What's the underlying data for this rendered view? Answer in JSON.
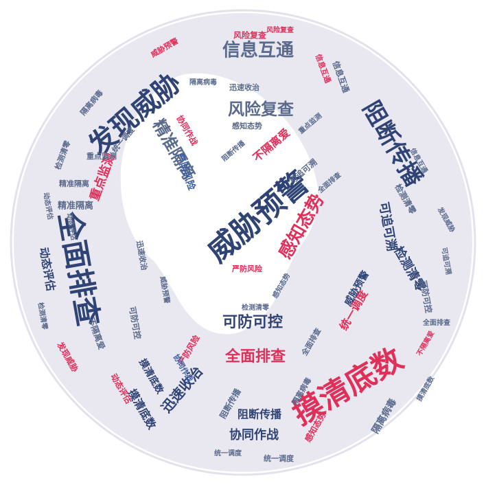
{
  "palette": {
    "navy": "#2f4475",
    "blue": "#3b5ea0",
    "slate": "#5a6a8c",
    "red": "#e0305a",
    "light": "#e9e8f1",
    "ring": "#e2e2ec",
    "face": "#ffffff"
  },
  "words": [
    {
      "text": "摸清底数",
      "color": "red"
    },
    {
      "text": "威胁预警",
      "color": "navy"
    },
    {
      "text": "全面排查",
      "color": "navy"
    },
    {
      "text": "发现威胁",
      "color": "navy"
    },
    {
      "text": "阻断传播",
      "color": "navy"
    },
    {
      "text": "信息互通",
      "color": "slate"
    },
    {
      "text": "风险复查",
      "color": "slate"
    },
    {
      "text": "精准隔离",
      "color": "slate"
    },
    {
      "text": "感知态势",
      "color": "red"
    },
    {
      "text": "全面排查",
      "color": "red"
    },
    {
      "text": "可防可控",
      "color": "navy"
    },
    {
      "text": "迅速收治",
      "color": "navy"
    },
    {
      "text": "协同作战",
      "color": "navy"
    },
    {
      "text": "阻断传播",
      "color": "navy"
    },
    {
      "text": "检测清零",
      "color": "navy"
    },
    {
      "text": "可追可溯",
      "color": "navy"
    },
    {
      "text": "重点监测",
      "color": "red"
    },
    {
      "text": "不隔离爱",
      "color": "red"
    },
    {
      "text": "严防风险",
      "color": "blue"
    },
    {
      "text": "动态评估",
      "color": "navy"
    },
    {
      "text": "摸清底数",
      "color": "navy"
    },
    {
      "text": "统一调度",
      "color": "red"
    },
    {
      "text": "隔离病毒",
      "color": "slate"
    },
    {
      "text": "威胁预警",
      "color": "navy"
    },
    {
      "text": "精准隔离",
      "color": "slate"
    },
    {
      "text": "检测清零",
      "color": "slate"
    },
    {
      "text": "可防可控",
      "color": "slate"
    },
    {
      "text": "风险复查",
      "color": "red"
    },
    {
      "text": "重点监测",
      "color": "slate"
    },
    {
      "text": "全面排查",
      "color": "slate"
    },
    {
      "text": "感知态势",
      "color": "red"
    },
    {
      "text": "迅速收治",
      "color": "slate"
    },
    {
      "text": "信息互通",
      "color": "slate"
    },
    {
      "text": "严防风险",
      "color": "red"
    },
    {
      "text": "隔离病毒",
      "color": "slate"
    },
    {
      "text": "统一调度",
      "color": "slate"
    },
    {
      "text": "检测清零",
      "color": "slate"
    },
    {
      "text": "发现威胁",
      "color": "red"
    },
    {
      "text": "动态评估",
      "color": "red"
    },
    {
      "text": "摸清底数",
      "color": "navy"
    },
    {
      "text": "阻断传播",
      "color": "slate"
    },
    {
      "text": "协同作战",
      "color": "red"
    },
    {
      "text": "可追可溯",
      "color": "slate"
    },
    {
      "text": "威胁预警",
      "color": "red"
    },
    {
      "text": "信息互通",
      "color": "red"
    },
    {
      "text": "隔离病毒",
      "color": "slate"
    },
    {
      "text": "感知态势",
      "color": "slate"
    },
    {
      "text": "不隔离爱",
      "color": "slate"
    },
    {
      "text": "统一调度",
      "color": "slate"
    },
    {
      "text": "严防风险",
      "color": "red"
    },
    {
      "text": "检测清零",
      "color": "slate"
    },
    {
      "text": "全面排查",
      "color": "slate"
    },
    {
      "text": "迅速收治",
      "color": "slate"
    },
    {
      "text": "可防可控",
      "color": "slate"
    },
    {
      "text": "精准隔离",
      "color": "slate"
    },
    {
      "text": "发现威胁",
      "color": "slate"
    },
    {
      "text": "摸清底数",
      "color": "slate"
    },
    {
      "text": "协同作战",
      "color": "blue"
    },
    {
      "text": "重点监测",
      "color": "slate"
    },
    {
      "text": "动态评估",
      "color": "slate"
    },
    {
      "text": "风险复查",
      "color": "red"
    },
    {
      "text": "威胁预警",
      "color": "slate"
    },
    {
      "text": "阻断传播",
      "color": "slate"
    },
    {
      "text": "可追可溯",
      "color": "slate"
    },
    {
      "text": "信息互通",
      "color": "slate"
    },
    {
      "text": "感知态势",
      "color": "slate"
    },
    {
      "text": "隔离病毒",
      "color": "slate"
    },
    {
      "text": "检测清零",
      "color": "slate"
    },
    {
      "text": "不隔离爱",
      "color": "red"
    },
    {
      "text": "全面排查",
      "color": "slate"
    },
    {
      "text": "动态评估",
      "color": "slate"
    },
    {
      "text": "统一调度",
      "color": "slate"
    }
  ]
}
